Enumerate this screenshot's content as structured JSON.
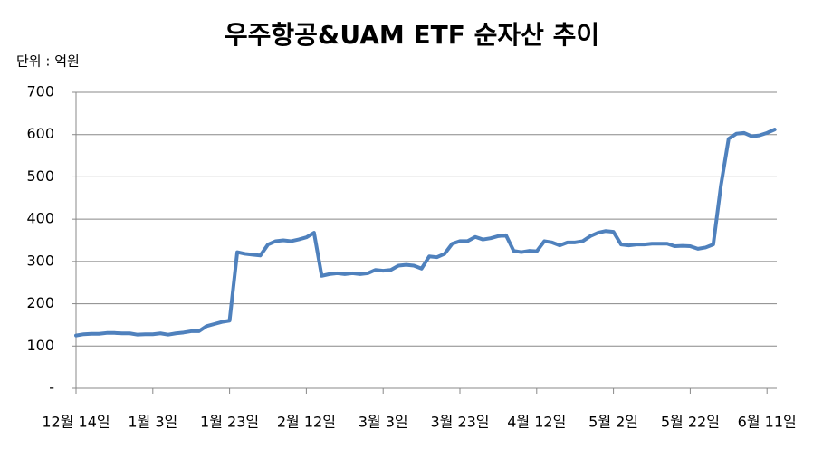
{
  "chart_data": {
    "type": "line",
    "title": "우주항공&UAM ETF 순자산 추이",
    "unit_label": "단위 : 억원",
    "categories": [
      "12월 14일",
      null,
      null,
      null,
      null,
      null,
      null,
      null,
      null,
      null,
      "1월 3일",
      null,
      null,
      null,
      null,
      null,
      null,
      null,
      null,
      null,
      "1월 23일",
      null,
      null,
      null,
      null,
      null,
      null,
      null,
      null,
      null,
      "2월 12일",
      null,
      null,
      null,
      null,
      null,
      null,
      null,
      null,
      null,
      "3월 3일",
      null,
      null,
      null,
      null,
      null,
      null,
      null,
      null,
      null,
      "3월 23일",
      null,
      null,
      null,
      null,
      null,
      null,
      null,
      null,
      null,
      "4월 12일",
      null,
      null,
      null,
      null,
      null,
      null,
      null,
      null,
      null,
      "5월 2일",
      null,
      null,
      null,
      null,
      null,
      null,
      null,
      null,
      null,
      "5월 22일",
      null,
      null,
      null,
      null,
      null,
      null,
      null,
      null,
      null,
      "6월 11일",
      null
    ],
    "series": [
      {
        "name": "순자산",
        "color": "#4f81bd",
        "values": [
          125,
          128,
          129,
          129,
          131,
          131,
          130,
          130,
          127,
          128,
          128,
          130,
          127,
          130,
          132,
          135,
          135,
          147,
          152,
          157,
          160,
          322,
          318,
          316,
          314,
          340,
          348,
          350,
          348,
          352,
          357,
          368,
          266,
          270,
          272,
          270,
          272,
          270,
          272,
          280,
          278,
          280,
          290,
          292,
          290,
          283,
          312,
          310,
          318,
          342,
          348,
          348,
          358,
          352,
          355,
          360,
          362,
          325,
          322,
          325,
          324,
          348,
          345,
          338,
          345,
          345,
          348,
          360,
          368,
          372,
          370,
          340,
          338,
          340,
          340,
          342,
          342,
          342,
          336,
          337,
          336,
          330,
          333,
          340,
          480,
          590,
          602,
          604,
          596,
          598,
          604,
          612
        ]
      }
    ],
    "ylim": [
      0,
      700
    ],
    "yticks": [
      {
        "value": 0,
        "label": "-"
      },
      100,
      200,
      300,
      400,
      500,
      600,
      700
    ],
    "grid": true
  }
}
